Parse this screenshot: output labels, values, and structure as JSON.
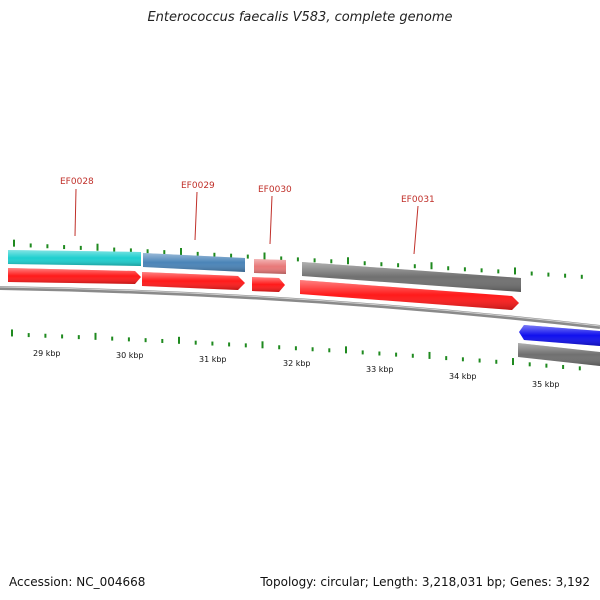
{
  "title": "Enterococcus faecalis V583, complete genome",
  "footer": {
    "accession": "Accession: NC_004668",
    "summary": "Topology: circular; Length: 3,218,031 bp; Genes: 3,192"
  },
  "colors": {
    "backbone": "#8a8a8a",
    "cds_forward": "#ff1a1a",
    "tick": "#1f8a1f",
    "label_line": "#c0302a"
  },
  "gene_labels": [
    {
      "id": "label-ef0028",
      "text": "EF0028"
    },
    {
      "id": "label-ef0029",
      "text": "EF0029"
    },
    {
      "id": "label-ef0030",
      "text": "EF0030"
    },
    {
      "id": "label-ef0031",
      "text": "EF0031"
    }
  ],
  "kbp_labels": [
    "29 kbp",
    "30 kbp",
    "31 kbp",
    "32 kbp",
    "33 kbp",
    "34 kbp",
    "35 kbp"
  ],
  "genes": [
    {
      "name": "ef0028-gene",
      "color": "#1ecfcf"
    },
    {
      "name": "ef0029-gene",
      "color": "#4a84b8"
    },
    {
      "name": "ef0030-gene",
      "color": "#e87878"
    },
    {
      "name": "ef0031-gene",
      "color": "#707070"
    },
    {
      "name": "next-gene-grey",
      "color": "#707070"
    },
    {
      "name": "next-gene-blue",
      "color": "#1010ee"
    }
  ]
}
